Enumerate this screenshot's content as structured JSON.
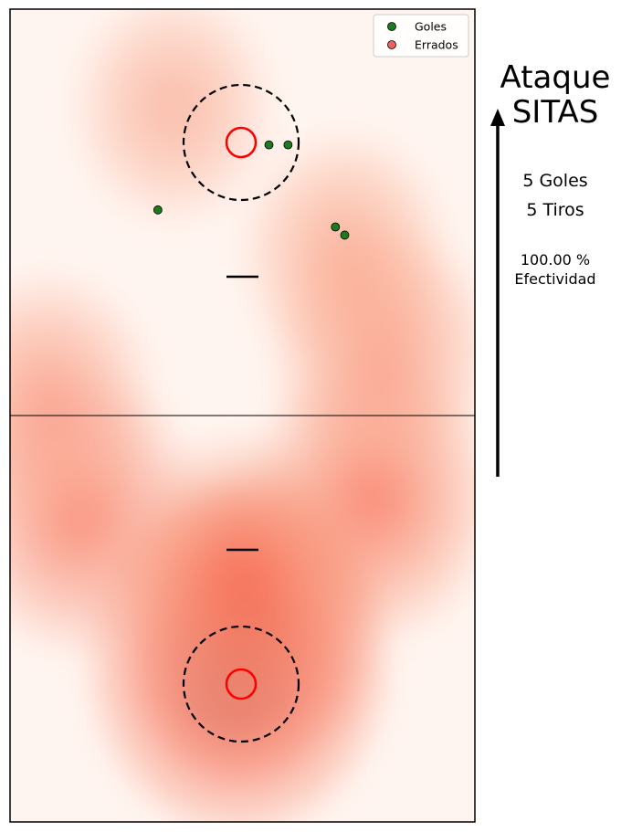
{
  "chart_data": {
    "type": "scatter",
    "subtype": "shot-chart-heatmap",
    "title_line1": "Ataque",
    "title_line2": "SITAS",
    "legend": [
      {
        "label": "Goles",
        "color": "#1e7a1e"
      },
      {
        "label": "Errados",
        "color": "#f06262"
      }
    ],
    "xlim": [
      0,
      1
    ],
    "ylim": [
      0,
      1
    ],
    "goles": [
      {
        "x": 0.557,
        "y": 0.167
      },
      {
        "x": 0.598,
        "y": 0.167
      },
      {
        "x": 0.318,
        "y": 0.247
      },
      {
        "x": 0.7,
        "y": 0.268
      },
      {
        "x": 0.72,
        "y": 0.278
      }
    ],
    "errados": [],
    "heatmap_hotspots": [
      {
        "x": 0.49,
        "y": 0.8,
        "weight": 1.0
      },
      {
        "x": 0.53,
        "y": 0.75,
        "weight": 0.6
      },
      {
        "x": 0.78,
        "y": 0.6,
        "weight": 0.5
      },
      {
        "x": 0.15,
        "y": 0.62,
        "weight": 0.45
      },
      {
        "x": 0.8,
        "y": 0.42,
        "weight": 0.3
      },
      {
        "x": 0.08,
        "y": 0.48,
        "weight": 0.25
      },
      {
        "x": 0.72,
        "y": 0.3,
        "weight": 0.18
      },
      {
        "x": 0.35,
        "y": 0.12,
        "weight": 0.12
      },
      {
        "x": 0.5,
        "y": 0.7,
        "weight": 0.5
      }
    ],
    "stats": {
      "goles_text": "5 Goles",
      "tiros_text": "5 Tiros",
      "efectividad_value": "100.00 %",
      "efectividad_label": "Efectividad"
    },
    "colors": {
      "gol_fill": "#1e7a1e",
      "errado_fill": "#f06262",
      "hoop": "#ff0000",
      "heat_low": "#fff5f0",
      "heat_high": "#67000d"
    }
  }
}
